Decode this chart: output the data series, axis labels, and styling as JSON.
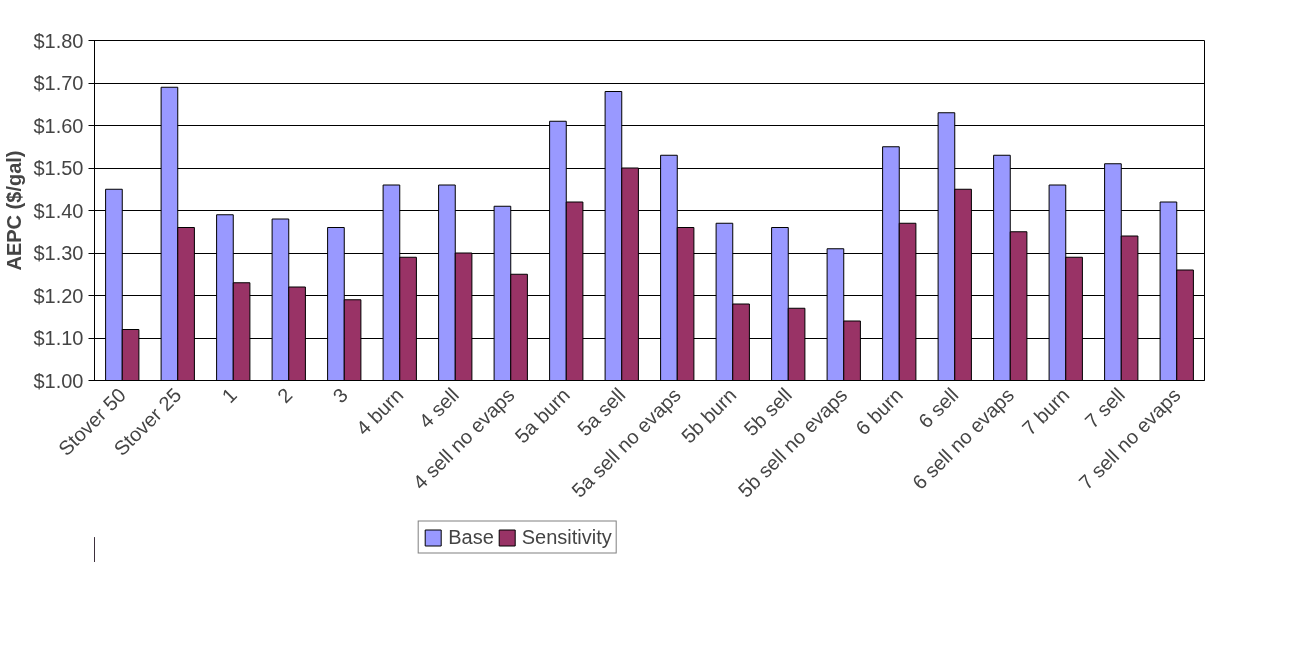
{
  "chart_data": {
    "type": "bar",
    "ylabel": "AEPC ($/gal)",
    "categories": [
      "Stover 50",
      "Stover 25",
      "1",
      "2",
      "3",
      "4 burn",
      "4 sell",
      "4 sell no evaps",
      "5a burn",
      "5a sell",
      "5a sell no evaps",
      "5b burn",
      "5b sell",
      "5b sell no evaps",
      "6 burn",
      "6 sell",
      "6 sell no evaps",
      "7 burn",
      "7 sell",
      "7 sell no evaps"
    ],
    "series": [
      {
        "name": "Base",
        "color": "#9999ff",
        "values": [
          1.45,
          1.69,
          1.39,
          1.38,
          1.36,
          1.46,
          1.46,
          1.41,
          1.61,
          1.68,
          1.53,
          1.37,
          1.36,
          1.31,
          1.55,
          1.63,
          1.53,
          1.46,
          1.51,
          1.42
        ]
      },
      {
        "name": "Sensitivity",
        "color": "#993366",
        "values": [
          1.12,
          1.36,
          1.23,
          1.22,
          1.19,
          1.29,
          1.3,
          1.25,
          1.42,
          1.5,
          1.36,
          1.18,
          1.17,
          1.14,
          1.37,
          1.45,
          1.35,
          1.29,
          1.34,
          1.26
        ]
      }
    ],
    "ylim": [
      1.0,
      1.8
    ],
    "yticks": [
      {
        "value": 1.0,
        "label": "$1.00"
      },
      {
        "value": 1.1,
        "label": "$1.10"
      },
      {
        "value": 1.2,
        "label": "$1.20"
      },
      {
        "value": 1.3,
        "label": "$1.30"
      },
      {
        "value": 1.4,
        "label": "$1.40"
      },
      {
        "value": 1.5,
        "label": "$1.50"
      },
      {
        "value": 1.6,
        "label": "$1.60"
      },
      {
        "value": 1.7,
        "label": "$1.70"
      },
      {
        "value": 1.8,
        "label": "$1.80"
      }
    ],
    "grid": "y",
    "legend": "bottom"
  }
}
